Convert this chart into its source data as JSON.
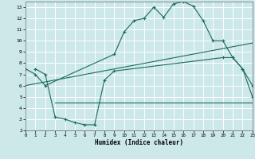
{
  "bg_color": "#cce8e8",
  "grid_color": "#ffffff",
  "line_color": "#1a6b5a",
  "curve1_x": [
    0,
    1,
    2,
    9,
    10,
    11,
    12,
    13,
    14,
    15,
    16,
    17,
    18,
    19,
    20,
    21,
    22,
    23
  ],
  "curve1_y": [
    7.5,
    7.0,
    6.0,
    8.8,
    10.8,
    11.8,
    12.0,
    13.0,
    12.1,
    13.3,
    13.5,
    13.1,
    11.8,
    10.0,
    10.0,
    8.5,
    7.5,
    5.0
  ],
  "curve2_x": [
    1,
    2,
    3,
    4,
    5,
    6,
    7,
    8,
    9,
    20,
    21,
    22,
    23
  ],
  "curve2_y": [
    7.5,
    7.0,
    3.2,
    3.0,
    2.7,
    2.5,
    2.5,
    6.5,
    7.3,
    8.5,
    8.5,
    7.5,
    6.0
  ],
  "line3_x": [
    0,
    23
  ],
  "line3_y": [
    6.0,
    9.8
  ],
  "line4_x": [
    3,
    23
  ],
  "line4_y": [
    4.5,
    4.5
  ],
  "xlim": [
    0,
    23
  ],
  "ylim": [
    2,
    13.5
  ],
  "yticks": [
    2,
    3,
    4,
    5,
    6,
    7,
    8,
    9,
    10,
    11,
    12,
    13
  ],
  "xticks": [
    0,
    1,
    2,
    3,
    4,
    5,
    6,
    7,
    8,
    9,
    10,
    11,
    12,
    13,
    14,
    15,
    16,
    17,
    18,
    19,
    20,
    21,
    22,
    23
  ],
  "xlabel": "Humidex (Indice chaleur)"
}
